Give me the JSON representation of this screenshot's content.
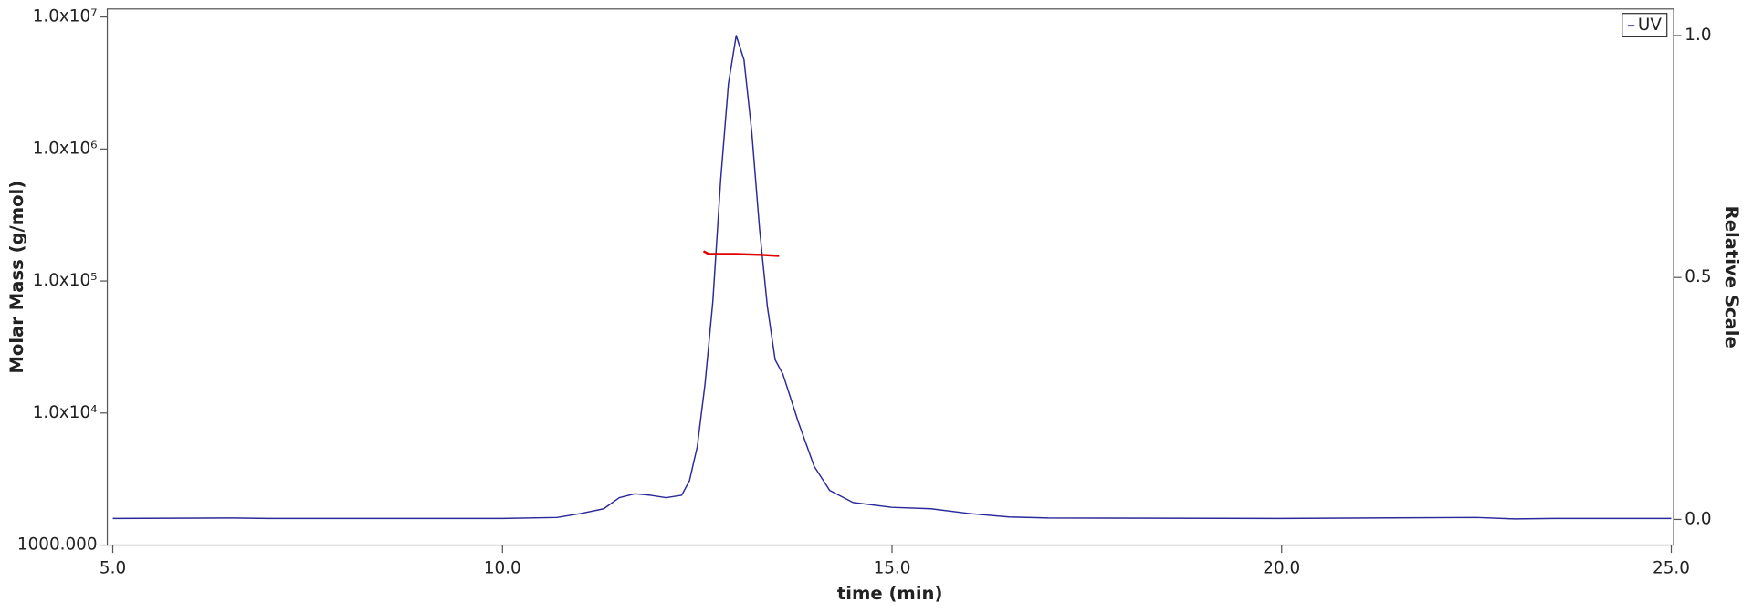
{
  "chart_data": {
    "type": "line",
    "x_label": "time (min)",
    "y_label": "Molar Mass (g/mol)",
    "y2_label": "Relative Scale",
    "log_y": true,
    "xlim": [
      4.93,
      25.03
    ],
    "xticks": [
      {
        "value": 5,
        "label": "5.0"
      },
      {
        "value": 10,
        "label": "10.0"
      },
      {
        "value": 15,
        "label": "15.0"
      },
      {
        "value": 20,
        "label": "20.0"
      },
      {
        "value": 25,
        "label": "25.0"
      }
    ],
    "ylim": [
      1000,
      11500000
    ],
    "yticks": [
      {
        "value": 1000,
        "label": "1000.000"
      },
      {
        "value": 10000,
        "label": "1.0x10⁴"
      },
      {
        "value": 100000,
        "label": "1.0x10⁵"
      },
      {
        "value": 1000000,
        "label": "1.0x10⁶"
      },
      {
        "value": 10000000,
        "label": "1.0x10⁷"
      }
    ],
    "y2lim": [
      -0.053,
      1.055
    ],
    "y2ticks": [
      {
        "value": 0,
        "label": "0.0"
      },
      0.5,
      {
        "value": 1,
        "label": "1.0"
      }
    ],
    "legend_position": "upper right",
    "series": [
      {
        "name": "UV",
        "color": "#2a2a9a",
        "axis": "y2",
        "x": [
          5.0,
          6.5,
          7.0,
          10.0,
          10.7,
          11.0,
          11.3,
          11.5,
          11.7,
          11.9,
          12.1,
          12.3,
          12.4,
          12.5,
          12.6,
          12.7,
          12.8,
          12.9,
          13.0,
          13.1,
          13.2,
          13.3,
          13.4,
          13.5,
          13.6,
          13.8,
          14.0,
          14.2,
          14.5,
          15.0,
          15.5,
          16.0,
          16.5,
          17.0,
          20.0,
          22.5,
          23.0,
          23.5,
          25.0
        ],
        "values": [
          0.002,
          0.003,
          0.002,
          0.002,
          0.004,
          0.012,
          0.022,
          0.045,
          0.053,
          0.05,
          0.045,
          0.05,
          0.08,
          0.15,
          0.28,
          0.45,
          0.7,
          0.9,
          1.0,
          0.95,
          0.8,
          0.6,
          0.44,
          0.33,
          0.3,
          0.2,
          0.11,
          0.06,
          0.035,
          0.025,
          0.022,
          0.012,
          0.005,
          0.003,
          0.002,
          0.004,
          0.001,
          0.002,
          0.002
        ]
      },
      {
        "color": "#e00000",
        "axis": "y",
        "x": [
          12.58,
          12.65,
          13.0,
          13.3,
          13.55
        ],
        "values": [
          168000,
          160000,
          160000,
          158000,
          155000
        ]
      }
    ]
  }
}
